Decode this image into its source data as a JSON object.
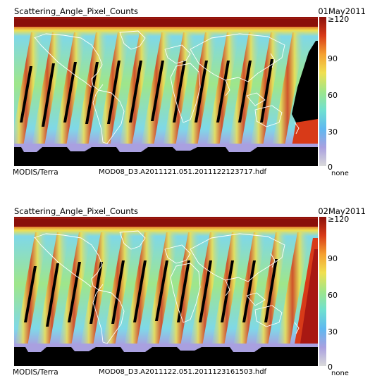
{
  "panels": [
    {
      "title": "Scattering_Angle_Pixel_Counts",
      "date": "01May2011",
      "instrument": "MODIS/Terra",
      "filename": "MOD08_D3.A2011121.051.2011122123717.hdf",
      "footer_right": "none"
    },
    {
      "title": "Scattering_Angle_Pixel_Counts",
      "date": "02May2011",
      "instrument": "MODIS/Terra",
      "filename": "MOD08_D3.A2011122.051.2011123161503.hdf",
      "footer_right": "none"
    }
  ],
  "colorbar": {
    "min": 0,
    "max": 120,
    "ticks": [
      {
        "value": 120,
        "label": "≥120"
      },
      {
        "value": 90,
        "label": "90"
      },
      {
        "value": 60,
        "label": "60"
      },
      {
        "value": 30,
        "label": "30"
      },
      {
        "value": 0,
        "label": "0"
      }
    ],
    "stops": [
      "#d9d9d9",
      "#a9a0e0",
      "#5fb8f0",
      "#6fe0d0",
      "#9fe68a",
      "#f0e050",
      "#f5a030",
      "#d83a18",
      "#8a0f0a"
    ]
  },
  "colors": {
    "no_data": "#000000",
    "coastline": "#ffffff",
    "high_count": "#9a1010",
    "mid_count": "#a8e07a",
    "low_count": "#7fd8e8"
  }
}
